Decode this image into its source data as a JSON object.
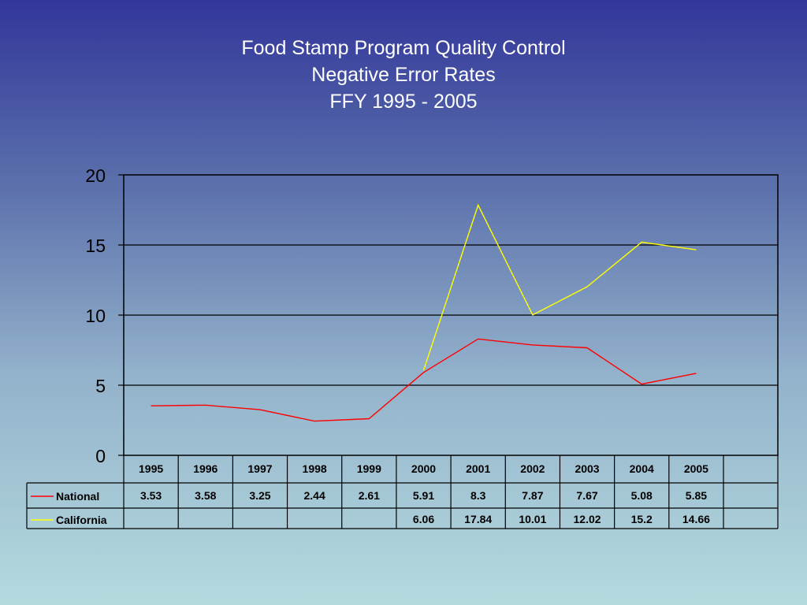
{
  "slide": {
    "title_lines": [
      "Food Stamp Program Quality Control",
      "Negative Error Rates",
      "FFY 1995 - 2005"
    ]
  },
  "chart_data": {
    "type": "line",
    "x": [
      "1995",
      "1996",
      "1997",
      "1998",
      "1999",
      "2000",
      "2001",
      "2002",
      "2003",
      "2004",
      "2005"
    ],
    "series": [
      {
        "name": "National",
        "color": "#ff0000",
        "values": [
          3.53,
          3.58,
          3.25,
          2.44,
          2.61,
          5.91,
          8.3,
          7.87,
          7.67,
          5.08,
          5.85
        ]
      },
      {
        "name": "California",
        "color": "#ffff00",
        "values": [
          null,
          null,
          null,
          null,
          null,
          6.06,
          17.84,
          10.01,
          12.02,
          15.2,
          14.66
        ]
      }
    ],
    "data_labels": {
      "National": [
        "3.53",
        "3.58",
        "3.25",
        "2.44",
        "2.61",
        "5.91",
        "8.3",
        "7.87",
        "7.67",
        "5.08",
        "5.85"
      ],
      "California": [
        "",
        "",
        "",
        "",
        "",
        "6.06",
        "17.84",
        "10.01",
        "12.02",
        "15.2",
        "14.66"
      ]
    },
    "ylim": [
      0,
      20
    ],
    "yticks": [
      0,
      5,
      10,
      15,
      20
    ],
    "grid": true,
    "legend": "data-table-left"
  }
}
